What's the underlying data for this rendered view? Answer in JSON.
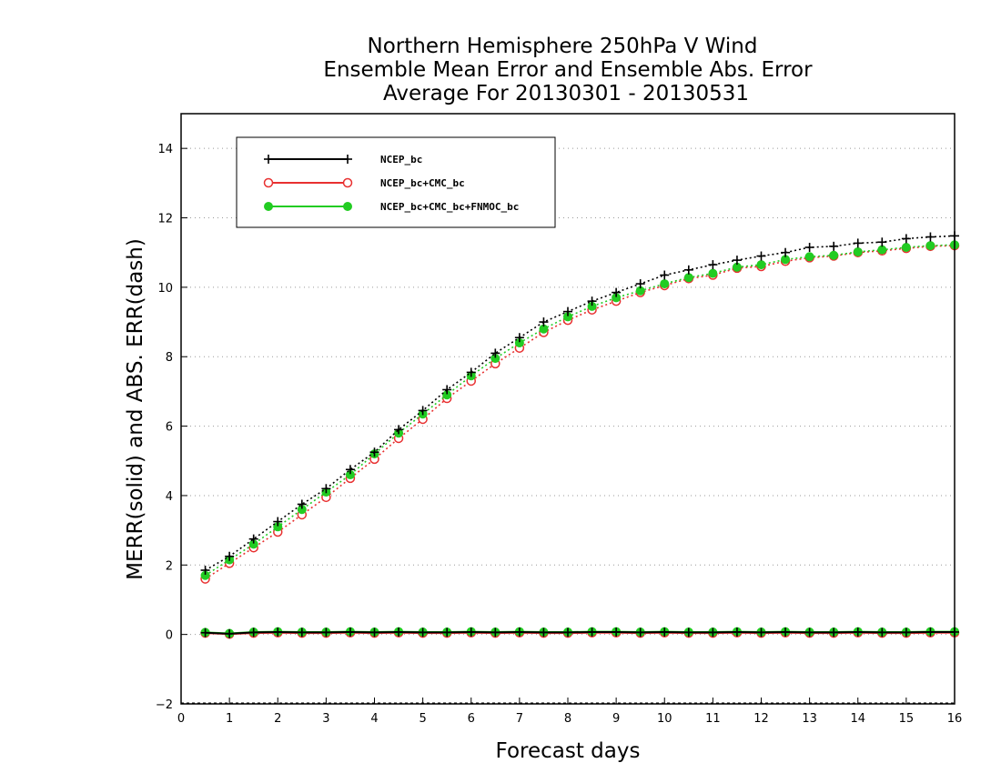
{
  "chart_data": {
    "type": "line",
    "title": [
      "Northern Hemisphere 250hPa V Wind",
      "Ensemble Mean Error and Ensemble Abs. Error",
      "Average For 20130301 - 20130531"
    ],
    "xlabel": "Forecast days",
    "ylabel": "MERR(solid) and ABS. ERR(dash)",
    "xlim": [
      0,
      16
    ],
    "ylim": [
      -2,
      15
    ],
    "xticks": [
      "0",
      "1",
      "2",
      "3",
      "4",
      "5",
      "6",
      "7",
      "8",
      "9",
      "10",
      "11",
      "12",
      "13",
      "14",
      "15",
      "16"
    ],
    "yticks": [
      "−2",
      "0",
      "2",
      "4",
      "6",
      "8",
      "10",
      "12",
      "14"
    ],
    "ytick_values": [
      -2,
      0,
      2,
      4,
      6,
      8,
      10,
      12,
      14
    ],
    "grid": "horizontal-dotted",
    "legend_position": "top-left",
    "x": [
      0.5,
      1,
      1.5,
      2,
      2.5,
      3,
      3.5,
      4,
      4.5,
      5,
      5.5,
      6,
      6.5,
      7,
      7.5,
      8,
      8.5,
      9,
      9.5,
      10,
      10.5,
      11,
      11.5,
      12,
      12.5,
      13,
      13.5,
      14,
      14.5,
      15,
      15.5,
      16
    ],
    "series": [
      {
        "name": "NCEP_bc",
        "color": "#000000",
        "marker": "plus",
        "abs_err": [
          1.85,
          2.25,
          2.75,
          3.25,
          3.75,
          4.2,
          4.75,
          5.25,
          5.9,
          6.45,
          7.05,
          7.55,
          8.1,
          8.55,
          9.0,
          9.3,
          9.6,
          9.85,
          10.1,
          10.35,
          10.5,
          10.65,
          10.78,
          10.9,
          11.0,
          11.15,
          11.18,
          11.27,
          11.3,
          11.4,
          11.45,
          11.48
        ],
        "mean_err": [
          0.05,
          0.02,
          0.06,
          0.07,
          0.06,
          0.06,
          0.07,
          0.06,
          0.07,
          0.06,
          0.06,
          0.07,
          0.06,
          0.07,
          0.06,
          0.06,
          0.07,
          0.07,
          0.06,
          0.07,
          0.06,
          0.06,
          0.07,
          0.06,
          0.07,
          0.06,
          0.06,
          0.07,
          0.06,
          0.06,
          0.07,
          0.07
        ]
      },
      {
        "name": "NCEP_bc+CMC_bc",
        "color": "#e83030",
        "marker": "circle",
        "abs_err": [
          1.6,
          2.05,
          2.5,
          2.95,
          3.45,
          3.95,
          4.5,
          5.05,
          5.65,
          6.2,
          6.8,
          7.3,
          7.8,
          8.25,
          8.7,
          9.05,
          9.35,
          9.6,
          9.85,
          10.05,
          10.25,
          10.35,
          10.55,
          10.6,
          10.75,
          10.85,
          10.9,
          11.0,
          11.05,
          11.12,
          11.18,
          11.2
        ],
        "mean_err": [
          0.04,
          0.01,
          0.04,
          0.05,
          0.04,
          0.04,
          0.05,
          0.04,
          0.05,
          0.04,
          0.04,
          0.05,
          0.04,
          0.05,
          0.04,
          0.04,
          0.05,
          0.05,
          0.04,
          0.05,
          0.04,
          0.04,
          0.05,
          0.04,
          0.05,
          0.04,
          0.04,
          0.05,
          0.04,
          0.04,
          0.05,
          0.05
        ]
      },
      {
        "name": "NCEP_bc+CMC_bc+FNMOC_bc",
        "color": "#22cc22",
        "marker": "filled-circle",
        "abs_err": [
          1.7,
          2.15,
          2.6,
          3.1,
          3.6,
          4.1,
          4.6,
          5.2,
          5.8,
          6.35,
          6.9,
          7.45,
          7.95,
          8.4,
          8.8,
          9.15,
          9.45,
          9.7,
          9.9,
          10.1,
          10.28,
          10.4,
          10.58,
          10.65,
          10.8,
          10.88,
          10.92,
          11.02,
          11.08,
          11.15,
          11.2,
          11.22
        ],
        "mean_err": [
          0.06,
          0.03,
          0.07,
          0.08,
          0.07,
          0.07,
          0.08,
          0.07,
          0.08,
          0.07,
          0.07,
          0.08,
          0.07,
          0.08,
          0.07,
          0.07,
          0.08,
          0.08,
          0.07,
          0.08,
          0.07,
          0.07,
          0.08,
          0.07,
          0.08,
          0.07,
          0.07,
          0.08,
          0.07,
          0.07,
          0.08,
          0.08
        ]
      }
    ]
  }
}
